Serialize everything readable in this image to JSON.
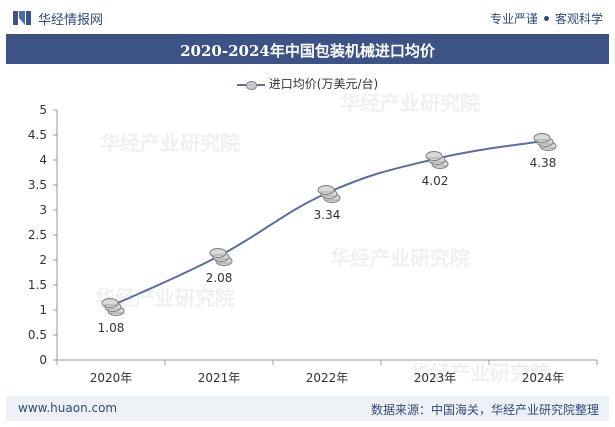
{
  "header": {
    "brand": "华经情报网",
    "motto_1": "专业严谨",
    "motto_2": "客观科学"
  },
  "chart_title": "2020-2024年中国包装机械进口均价",
  "footer": {
    "url": "www.huaon.com",
    "source": "数据来源：中国海关，华经产业研究院整理"
  },
  "watermark": "华经产业研究院",
  "chart_data": {
    "type": "line",
    "title": "2020-2024年中国包装机械进口均价",
    "categories": [
      "2020年",
      "2021年",
      "2022年",
      "2023年",
      "2024年"
    ],
    "series": [
      {
        "name": "进口均价(万美元/台)",
        "values": [
          1.08,
          2.08,
          3.34,
          4.02,
          4.38
        ],
        "color": "#5b6f9c"
      }
    ],
    "data_labels": [
      "1.08",
      "2.08",
      "3.34",
      "4.02",
      "4.38"
    ],
    "ylim": [
      0,
      5
    ],
    "yticks": [
      "0",
      "0.5",
      "1",
      "1.5",
      "2",
      "2.5",
      "3",
      "3.5",
      "4",
      "4.5",
      "5"
    ],
    "grid": false,
    "legend": "top-center",
    "marker": "coin-stack"
  }
}
